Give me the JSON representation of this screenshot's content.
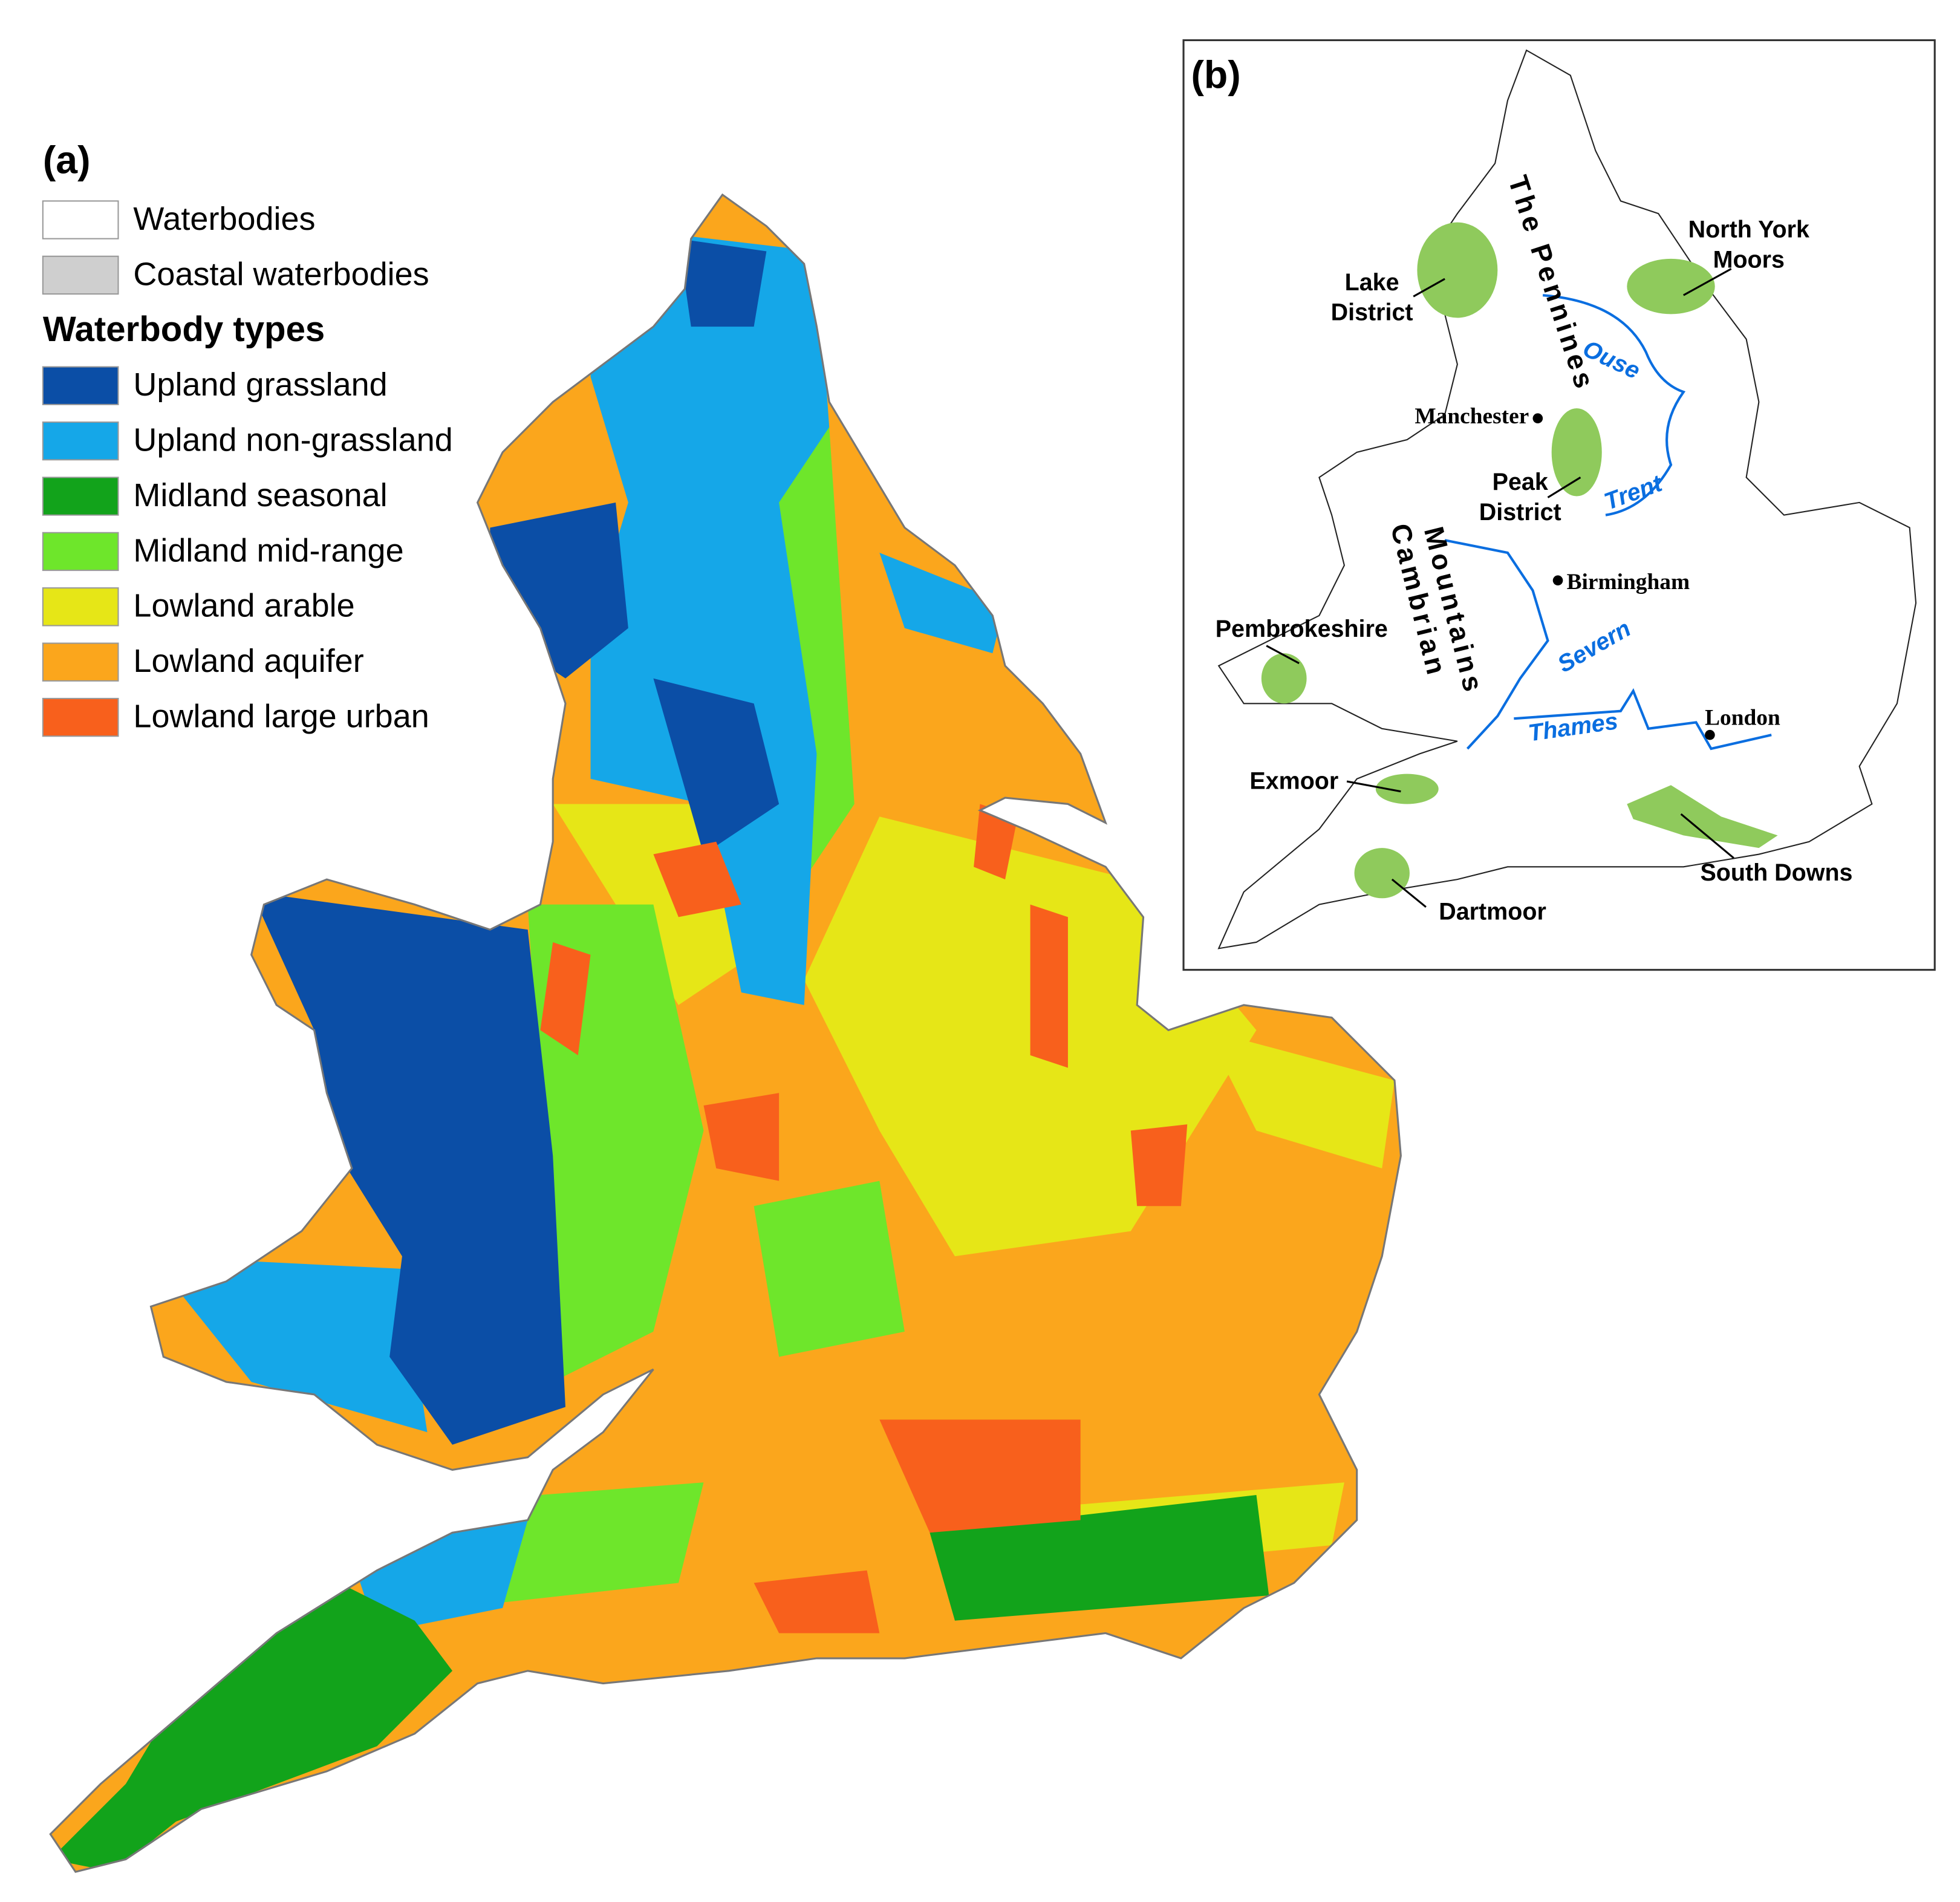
{
  "panel_a": {
    "label": "(a)",
    "legend": {
      "items": [
        {
          "name": "Waterbodies",
          "color": "#ffffff"
        },
        {
          "name": "Coastal waterbodies",
          "color": "#cfcfcf"
        }
      ],
      "title": "Waterbody types",
      "types": [
        {
          "name": "Upland grassland",
          "color": "#0b4ea6"
        },
        {
          "name": "Upland non-grassland",
          "color": "#15a7e8"
        },
        {
          "name": "Midland seasonal",
          "color": "#12a31b"
        },
        {
          "name": "Midland mid-range",
          "color": "#6ee62b"
        },
        {
          "name": "Lowland arable",
          "color": "#e6e617"
        },
        {
          "name": "Lowland aquifer",
          "color": "#fba61c"
        },
        {
          "name": "Lowland large urban",
          "color": "#f8601c"
        }
      ]
    }
  },
  "panel_b": {
    "label": "(b)",
    "area_color": "#8fca5c",
    "areas": [
      {
        "name": [
          "Lake",
          "District"
        ]
      },
      {
        "name": [
          "North York",
          "Moors"
        ]
      },
      {
        "name": [
          "Peak",
          "District"
        ]
      },
      {
        "name": [
          "Pembrokeshire"
        ]
      },
      {
        "name": [
          "Exmoor"
        ]
      },
      {
        "name": [
          "Dartmoor"
        ]
      },
      {
        "name": [
          "South Downs"
        ]
      }
    ],
    "cities": [
      "Manchester",
      "Birmingham",
      "London"
    ],
    "rivers": {
      "color": "#0a6ee0",
      "names": [
        "Ouse",
        "Trent",
        "Severn",
        "Thames"
      ]
    },
    "mountains": [
      [
        "The Pennines"
      ],
      [
        "Cambrian",
        "Mountains"
      ]
    ]
  }
}
